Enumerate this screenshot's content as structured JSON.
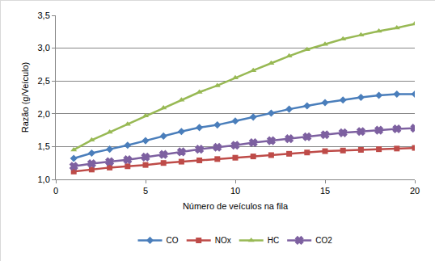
{
  "chart_data": {
    "type": "line",
    "x_label": "Número de veículos na fila",
    "y_label": "Razão (g/Veículo)",
    "x": [
      1,
      2,
      3,
      4,
      5,
      6,
      7,
      8,
      9,
      10,
      11,
      12,
      13,
      14,
      15,
      16,
      17,
      18,
      19,
      20
    ],
    "series": [
      {
        "name": "CO",
        "color": "#4a7ebb",
        "marker": "diamond",
        "values": [
          1.32,
          1.4,
          1.46,
          1.52,
          1.59,
          1.66,
          1.73,
          1.79,
          1.83,
          1.89,
          1.95,
          2.01,
          2.07,
          2.12,
          2.17,
          2.21,
          2.25,
          2.28,
          2.3,
          2.3
        ]
      },
      {
        "name": "NOx",
        "color": "#be4b48",
        "marker": "square",
        "values": [
          1.12,
          1.15,
          1.18,
          1.2,
          1.22,
          1.25,
          1.27,
          1.29,
          1.31,
          1.33,
          1.35,
          1.37,
          1.39,
          1.41,
          1.43,
          1.44,
          1.45,
          1.46,
          1.47,
          1.48
        ]
      },
      {
        "name": "HC",
        "color": "#98b954",
        "marker": "triangle-up",
        "values": [
          1.45,
          1.6,
          1.72,
          1.84,
          1.97,
          2.09,
          2.21,
          2.33,
          2.43,
          2.55,
          2.66,
          2.77,
          2.88,
          2.98,
          3.06,
          3.14,
          3.2,
          3.26,
          3.31,
          3.37
        ]
      },
      {
        "name": "CO2",
        "color": "#7d60a0",
        "marker": "x",
        "values": [
          1.2,
          1.24,
          1.27,
          1.3,
          1.34,
          1.38,
          1.42,
          1.46,
          1.49,
          1.52,
          1.56,
          1.59,
          1.62,
          1.65,
          1.68,
          1.71,
          1.73,
          1.75,
          1.77,
          1.78
        ]
      }
    ],
    "xlim": [
      0,
      20
    ],
    "xticks": [
      0,
      5,
      10,
      15,
      20
    ],
    "ylim": [
      1.0,
      3.5
    ],
    "yticks": [
      {
        "value": 1.0,
        "label": "1,0"
      },
      {
        "value": 1.5,
        "label": "1,5"
      },
      {
        "value": 2.0,
        "label": "2,0"
      },
      {
        "value": 2.5,
        "label": "2,5"
      },
      {
        "value": 3.0,
        "label": "3,0"
      },
      {
        "value": 3.5,
        "label": "3,5"
      }
    ],
    "grid": true,
    "legend": "bottom"
  }
}
